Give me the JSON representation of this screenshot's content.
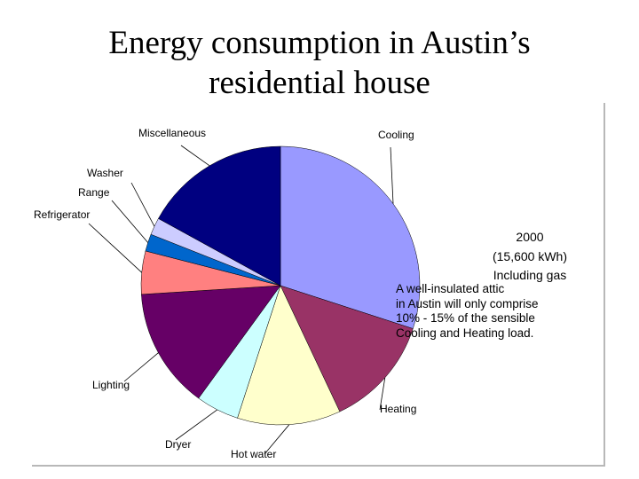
{
  "slide": {
    "title_lines": [
      "Energy consumption in Austin’s",
      "residential house"
    ],
    "annotation_lines": [
      "A well-insulated attic",
      "in Austin will only comprise",
      "10% - 15% of the sensible",
      "Cooling and Heating load."
    ]
  },
  "chart_data": {
    "type": "pie",
    "info_lines": [
      "2000",
      "(15,600 kWh)",
      "Including gas"
    ],
    "slices": [
      {
        "label": "Cooling",
        "value": 30,
        "color": "#9999ff"
      },
      {
        "label": "Heating",
        "value": 13,
        "color": "#993366"
      },
      {
        "label": "Hot water",
        "value": 12,
        "color": "#ffffcc"
      },
      {
        "label": "Dryer",
        "value": 5,
        "color": "#ccffff"
      },
      {
        "label": "Lighting",
        "value": 14,
        "color": "#660066"
      },
      {
        "label": "Refrigerator",
        "value": 5,
        "color": "#ff8080"
      },
      {
        "label": "Range",
        "value": 2,
        "color": "#0066cc"
      },
      {
        "label": "Washer",
        "value": 2,
        "color": "#ccccff"
      },
      {
        "label": "Miscellaneous",
        "value": 17,
        "color": "#000080"
      }
    ]
  }
}
